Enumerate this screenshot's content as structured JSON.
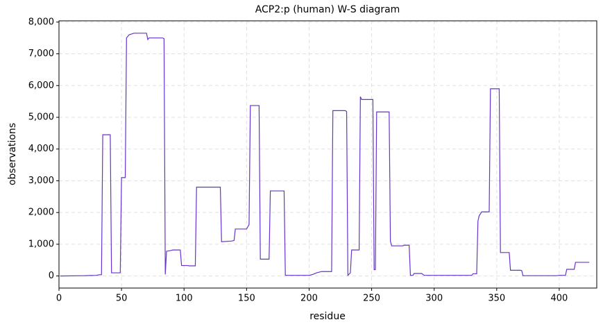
{
  "chart_data": {
    "type": "line",
    "title": "ACP2:p (human) W-S diagram",
    "x_label": "residue",
    "y_label": "observations",
    "color": "#6633cc",
    "grid": true,
    "xlim": [
      0,
      430
    ],
    "ylim": [
      -380,
      8040
    ],
    "xticks": [
      0,
      50,
      100,
      150,
      200,
      250,
      300,
      350,
      400
    ],
    "yticks": [
      0,
      {
        "value": 1000,
        "label": "1,000"
      },
      {
        "value": 2000,
        "label": "2,000"
      },
      {
        "value": 3000,
        "label": "3,000"
      },
      {
        "value": 4000,
        "label": "4,000"
      },
      {
        "value": 5000,
        "label": "5,000"
      },
      {
        "value": 6000,
        "label": "6,000"
      },
      {
        "value": 7000,
        "label": "7,000"
      },
      {
        "value": 8000,
        "label": "8,000"
      }
    ],
    "x": [
      1,
      20,
      30,
      32,
      34,
      35,
      41,
      42,
      49,
      50,
      53,
      54,
      56,
      60,
      70,
      71,
      72,
      83,
      84,
      85,
      86,
      89,
      91,
      97,
      98,
      103,
      104,
      109,
      110,
      129,
      130,
      138,
      140,
      141,
      150,
      151,
      152,
      153,
      160,
      161,
      168,
      169,
      180,
      181,
      200,
      203,
      206,
      210,
      218,
      219,
      229,
      230,
      231,
      233,
      234,
      240,
      241,
      242,
      251,
      252,
      253,
      254,
      264,
      265,
      266,
      275,
      276,
      280,
      281,
      283,
      284,
      290,
      292,
      330,
      331,
      334,
      335,
      336,
      338,
      344,
      345,
      352,
      353,
      360,
      361,
      369,
      370,
      371,
      398,
      400,
      405,
      406,
      412,
      413,
      424
    ],
    "values": [
      0,
      10,
      20,
      40,
      40,
      4450,
      4450,
      100,
      100,
      3100,
      3100,
      7500,
      7600,
      7650,
      7650,
      7450,
      7500,
      7500,
      7480,
      50,
      780,
      800,
      820,
      820,
      330,
      330,
      320,
      320,
      2800,
      2800,
      1080,
      1100,
      1120,
      1480,
      1480,
      1550,
      1620,
      5370,
      5370,
      530,
      530,
      2680,
      2680,
      20,
      20,
      50,
      100,
      140,
      140,
      5210,
      5210,
      5180,
      20,
      100,
      820,
      820,
      5650,
      5560,
      5560,
      200,
      200,
      5170,
      5170,
      1100,
      950,
      950,
      970,
      970,
      20,
      20,
      80,
      80,
      20,
      20,
      70,
      70,
      1730,
      1900,
      2020,
      2020,
      5900,
      5900,
      740,
      740,
      180,
      180,
      170,
      10,
      10,
      20,
      20,
      210,
      210,
      430,
      430
    ]
  }
}
